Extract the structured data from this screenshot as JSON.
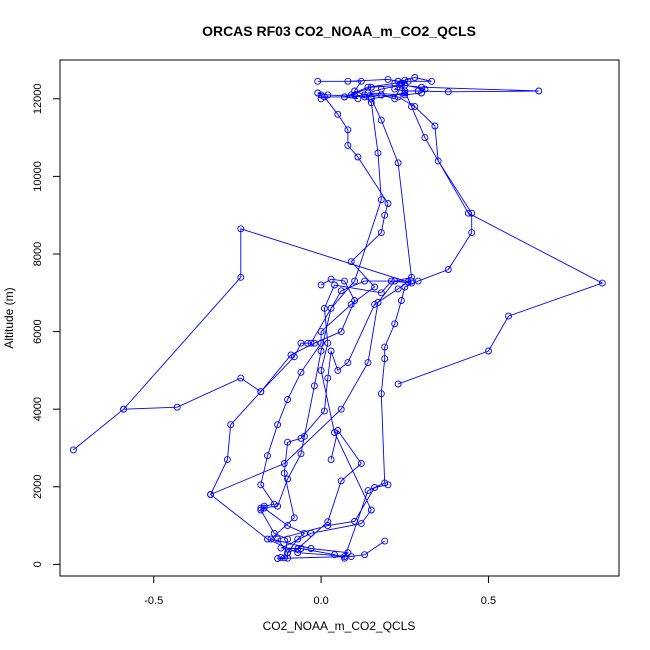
{
  "chart_data": {
    "type": "line",
    "title": "ORCAS RF03 CO2_NOAA_m_CO2_QCLS",
    "xlabel": "CO2_NOAA_m_CO2_QCLS",
    "ylabel": "Altitude (m)",
    "xlim": [
      -0.78,
      0.89
    ],
    "ylim": [
      -300,
      13000
    ],
    "xticks": [
      -0.5,
      0.0,
      0.5
    ],
    "xtick_labels": [
      "-0.5",
      "0.0",
      "0.5"
    ],
    "yticks": [
      0,
      2000,
      4000,
      6000,
      8000,
      10000,
      12000
    ],
    "ytick_labels": [
      "0",
      "2000",
      "4000",
      "6000",
      "8000",
      "10000",
      "12000"
    ],
    "y_tick_orientation": "vertical",
    "grid": false,
    "legend": "none",
    "style": {
      "line_color": "#0000ff",
      "marker": "open-circle",
      "frame_color": "#000000"
    },
    "series": [
      {
        "points": [
          [
            0.2,
            2050
          ],
          [
            0.16,
            1980
          ],
          [
            0.1,
            1110
          ],
          [
            0.02,
            1000
          ],
          [
            -0.13,
            650
          ],
          [
            -0.1,
            300
          ],
          [
            -0.1,
            160
          ],
          [
            -0.12,
            180
          ],
          [
            -0.13,
            150
          ],
          [
            0.07,
            200
          ],
          [
            0.08,
            300
          ],
          [
            -0.03,
            410
          ],
          [
            -0.15,
            650
          ],
          [
            -0.08,
            1200
          ],
          [
            -0.11,
            2350
          ],
          [
            -0.1,
            3150
          ],
          [
            -0.06,
            3250
          ],
          [
            0.01,
            3950
          ],
          [
            0.02,
            4800
          ],
          [
            0.03,
            5500
          ],
          [
            0.05,
            5000
          ],
          [
            0.08,
            5200
          ],
          [
            0.16,
            6700
          ],
          [
            0.23,
            7100
          ],
          [
            0.26,
            7280
          ],
          [
            0.27,
            7300
          ],
          [
            0.13,
            7300
          ],
          [
            0.06,
            7050
          ],
          [
            -0.03,
            5700
          ],
          [
            -0.04,
            5700
          ],
          [
            -0.06,
            5700
          ],
          [
            -0.08,
            5350
          ],
          [
            -0.18,
            4450
          ],
          [
            -0.24,
            4800
          ],
          [
            -0.43,
            4050
          ],
          [
            -0.59,
            4000
          ],
          [
            -0.74,
            2950
          ],
          [
            -0.59,
            4000
          ],
          [
            -0.24,
            7400
          ],
          [
            -0.24,
            8650
          ],
          [
            0.27,
            7250
          ],
          [
            0.21,
            7300
          ],
          [
            0.18,
            7000
          ],
          [
            0.04,
            7200
          ],
          [
            0.01,
            6600
          ],
          [
            0.02,
            5700
          ],
          [
            0.0,
            5000
          ],
          [
            0.04,
            3400
          ],
          [
            0.15,
            1400
          ],
          [
            0.12,
            1050
          ],
          [
            -0.03,
            800
          ],
          [
            -0.12,
            420
          ],
          [
            -0.06,
            410
          ],
          [
            0.04,
            250
          ],
          [
            0.07,
            160
          ],
          [
            0.14,
            1900
          ],
          [
            0.19,
            2100
          ],
          [
            0.18,
            4400
          ],
          [
            0.19,
            5300
          ],
          [
            0.19,
            5600
          ],
          [
            0.22,
            6200
          ],
          [
            0.24,
            6800
          ],
          [
            0.25,
            7150
          ],
          [
            0.29,
            7300
          ],
          [
            0.38,
            7600
          ],
          [
            0.45,
            8550
          ],
          [
            0.45,
            9050
          ],
          [
            0.35,
            10400
          ],
          [
            0.34,
            11300
          ],
          [
            0.28,
            11800
          ],
          [
            0.23,
            12050
          ],
          [
            0.18,
            12100
          ],
          [
            0.15,
            12050
          ],
          [
            0.1,
            12100
          ],
          [
            0.07,
            12050
          ],
          [
            0.14,
            12300
          ],
          [
            0.22,
            12400
          ],
          [
            0.26,
            12450
          ],
          [
            0.22,
            12250
          ],
          [
            0.25,
            12200
          ],
          [
            0.29,
            12200
          ],
          [
            0.38,
            12180
          ],
          [
            0.65,
            12200
          ],
          [
            0.3,
            12300
          ],
          [
            0.24,
            12350
          ],
          [
            0.18,
            12250
          ],
          [
            0.14,
            12150
          ],
          [
            0.25,
            12100
          ],
          [
            0.3,
            12150
          ],
          [
            0.31,
            12250
          ],
          [
            0.25,
            12350
          ],
          [
            0.23,
            12450
          ],
          [
            0.25,
            12480
          ],
          [
            0.28,
            12550
          ],
          [
            0.33,
            12450
          ],
          [
            0.23,
            12450
          ],
          [
            0.2,
            12500
          ],
          [
            0.08,
            12450
          ],
          [
            -0.01,
            12450
          ],
          [
            0.12,
            12450
          ],
          [
            0.1,
            12200
          ],
          [
            0.13,
            12100
          ],
          [
            0.18,
            12100
          ],
          [
            0.22,
            12000
          ],
          [
            0.24,
            12350
          ],
          [
            0.15,
            12300
          ],
          [
            0.09,
            12100
          ],
          [
            0.11,
            12000
          ],
          [
            0.07,
            12050
          ],
          [
            0.01,
            12050
          ],
          [
            0.05,
            11600
          ],
          [
            0.08,
            11200
          ],
          [
            0.08,
            10800
          ],
          [
            0.11,
            10500
          ],
          [
            0.2,
            9300
          ],
          [
            0.19,
            9000
          ],
          [
            0.18,
            8550
          ],
          [
            0.09,
            7800
          ],
          [
            0.16,
            7150
          ],
          [
            0.09,
            6700
          ],
          [
            0.0,
            6000
          ],
          [
            0.0,
            5700
          ],
          [
            -0.06,
            4950
          ],
          [
            -0.1,
            4250
          ],
          [
            -0.13,
            3600
          ],
          [
            -0.16,
            2800
          ],
          [
            -0.18,
            2050
          ],
          [
            -0.14,
            1550
          ],
          [
            -0.17,
            1500
          ],
          [
            -0.17,
            1450
          ],
          [
            -0.1,
            1000
          ],
          [
            -0.05,
            800
          ],
          [
            -0.07,
            650
          ],
          [
            -0.1,
            300
          ],
          [
            -0.07,
            400
          ],
          [
            0.02,
            1100
          ],
          [
            0.06,
            2150
          ],
          [
            0.12,
            2600
          ],
          [
            0.05,
            3450
          ],
          [
            0.03,
            2700
          ]
        ]
      },
      {
        "points": [
          [
            -0.33,
            1800
          ],
          [
            -0.28,
            2700
          ],
          [
            -0.27,
            3600
          ],
          [
            -0.18,
            4450
          ],
          [
            -0.09,
            5400
          ],
          [
            -0.02,
            5700
          ],
          [
            0.06,
            6000
          ],
          [
            0.1,
            6800
          ],
          [
            0.07,
            7300
          ],
          [
            0.03,
            7350
          ],
          [
            0.0,
            7200
          ]
        ]
      },
      {
        "points": [
          [
            0.23,
            4650
          ],
          [
            0.5,
            5500
          ],
          [
            0.56,
            6400
          ],
          [
            0.84,
            7250
          ],
          [
            0.44,
            9050
          ],
          [
            0.31,
            11000
          ],
          [
            0.27,
            11800
          ],
          [
            0.24,
            12400
          ]
        ]
      },
      {
        "points": [
          [
            0.0,
            12000
          ],
          [
            0.0,
            12100
          ],
          [
            -0.01,
            12150
          ],
          [
            0.02,
            12100
          ],
          [
            0.13,
            12050
          ],
          [
            0.15,
            11900
          ],
          [
            0.17,
            10600
          ],
          [
            0.18,
            9400
          ],
          [
            0.1,
            7300
          ],
          [
            0.03,
            6600
          ],
          [
            0.0,
            5500
          ],
          [
            -0.02,
            4600
          ],
          [
            -0.05,
            3300
          ],
          [
            -0.06,
            2850
          ],
          [
            -0.1,
            2200
          ],
          [
            -0.13,
            1500
          ],
          [
            -0.18,
            1450
          ],
          [
            -0.18,
            1400
          ],
          [
            -0.14,
            800
          ],
          [
            -0.1,
            650
          ],
          [
            -0.11,
            170
          ]
        ]
      },
      {
        "points": [
          [
            0.25,
            12150
          ],
          [
            0.15,
            12000
          ],
          [
            0.18,
            11450
          ],
          [
            0.23,
            10350
          ],
          [
            0.27,
            7400
          ],
          [
            0.22,
            7300
          ],
          [
            0.17,
            6750
          ],
          [
            0.14,
            5200
          ],
          [
            0.06,
            4000
          ],
          [
            -0.11,
            2600
          ],
          [
            -0.33,
            1800
          ],
          [
            -0.16,
            650
          ],
          [
            -0.07,
            300
          ],
          [
            0.09,
            200
          ],
          [
            0.13,
            250
          ],
          [
            0.19,
            600
          ]
        ]
      }
    ]
  }
}
